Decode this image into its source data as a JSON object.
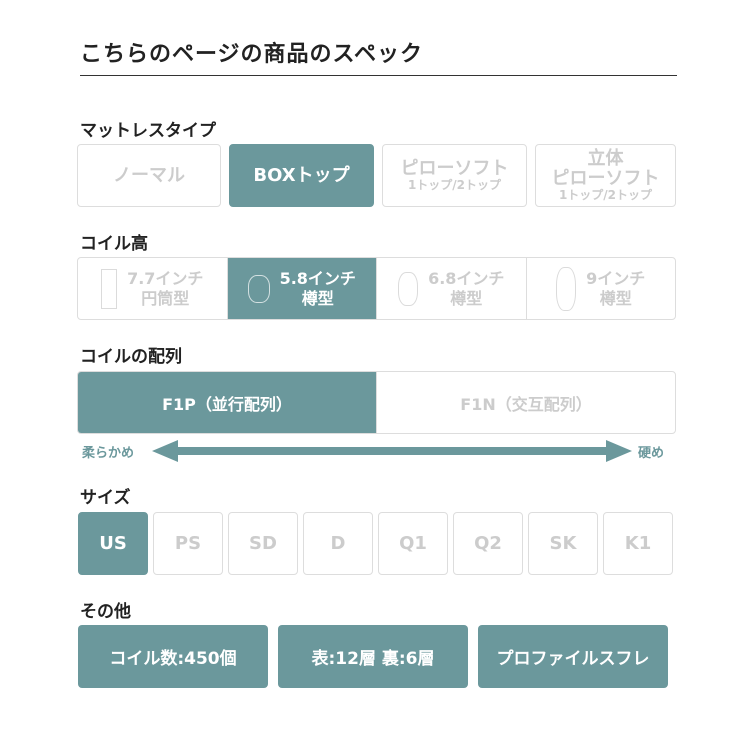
{
  "title": "こちらのページの商品のスペック",
  "accent": "#6b989c",
  "mattress_type": {
    "heading": "マットレスタイプ",
    "options": [
      {
        "label": "ノーマル",
        "sub": "",
        "selected": false
      },
      {
        "label": "BOXトップ",
        "sub": "",
        "selected": true
      },
      {
        "label": "ピローソフト",
        "sub": "1トップ/2トップ",
        "selected": false
      },
      {
        "label": "立体\nピローソフト",
        "line1": "立体",
        "line2": "ピローソフト",
        "sub": "1トップ/2トップ",
        "selected": false
      }
    ]
  },
  "coil_height": {
    "heading": "コイル高",
    "options": [
      {
        "label": "7.7インチ",
        "shape": "円筒型",
        "icon": "cylinder-coil-icon",
        "selected": false
      },
      {
        "label": "5.8インチ",
        "shape": "樽型",
        "icon": "barrel-coil-icon",
        "selected": true
      },
      {
        "label": "6.8インチ",
        "shape": "樽型",
        "icon": "barrel-coil-icon",
        "selected": false
      },
      {
        "label": "9インチ",
        "shape": "樽型",
        "icon": "barrel-coil-icon",
        "selected": false
      }
    ]
  },
  "coil_layout": {
    "heading": "コイルの配列",
    "options": [
      {
        "label": "F1P（並行配列）",
        "selected": true
      },
      {
        "label": "F1N（交互配列）",
        "selected": false
      }
    ],
    "soft_label": "柔らかめ",
    "hard_label": "硬め"
  },
  "size": {
    "heading": "サイズ",
    "options": [
      "US",
      "PS",
      "SD",
      "D",
      "Q1",
      "Q2",
      "SK",
      "K1"
    ],
    "selected": "US"
  },
  "other": {
    "heading": "その他",
    "tags": [
      "コイル数:450個",
      "表:12層 裏:6層",
      "プロファイルスフレ"
    ]
  }
}
